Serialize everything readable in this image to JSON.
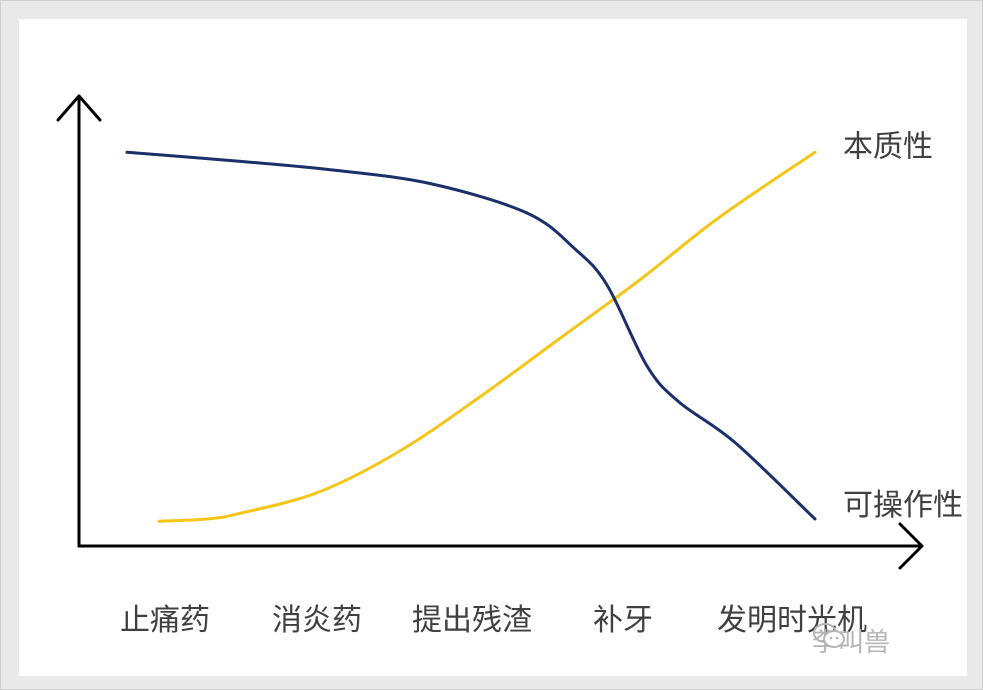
{
  "chart_data": {
    "type": "line",
    "categories": [
      "止痛药",
      "消炎药",
      "提出残渣",
      "补牙",
      "发明时光机"
    ],
    "series": [
      {
        "name": "本质性",
        "color": "#f5c518",
        "x": [
          0.5,
          0.8,
          1.0,
          1.5,
          2.0,
          2.5,
          3.0,
          3.5,
          4.0,
          4.6
        ],
        "values": [
          0.55,
          0.6,
          0.72,
          1.2,
          2.1,
          3.3,
          4.6,
          5.9,
          7.3,
          8.75
        ]
      },
      {
        "name": "可操作性",
        "color": "#1b2f6b",
        "x": [
          0.3,
          1.0,
          1.6,
          2.2,
          2.8,
          3.1,
          3.3,
          3.55,
          3.75,
          4.1,
          4.6
        ],
        "values": [
          8.75,
          8.55,
          8.35,
          8.05,
          7.4,
          6.6,
          5.8,
          4.0,
          3.2,
          2.3,
          0.6
        ]
      }
    ],
    "xlim": [
      0,
      5
    ],
    "ylim": [
      0,
      10
    ],
    "title": "",
    "xlabel": "",
    "ylabel": "",
    "grid": false,
    "legend": "inline-end-labels"
  },
  "watermark": {
    "text": "李叫兽",
    "icon": "wechat-icon"
  }
}
